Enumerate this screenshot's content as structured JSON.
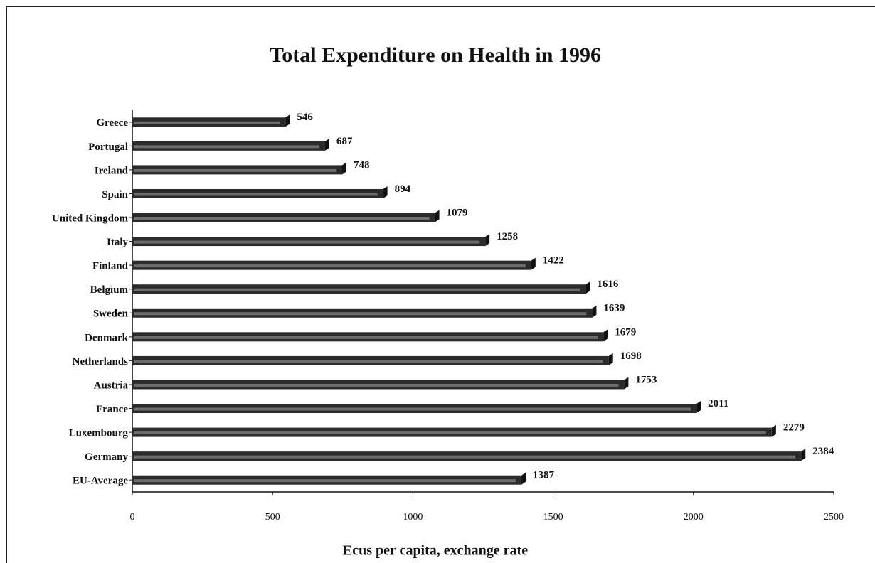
{
  "chart_data": {
    "type": "bar",
    "orientation": "horizontal",
    "title": "Total Expenditure on Health in 1996",
    "x_label": "Ecus per capita, exchange rate",
    "categories": [
      "Greece",
      "Portugal",
      "Ireland",
      "Spain",
      "United Kingdom",
      "Italy",
      "Finland",
      "Belgium",
      "Sweden",
      "Denmark",
      "Netherlands",
      "Austria",
      "France",
      "Luxembourg",
      "Germany",
      "EU-Average"
    ],
    "values": [
      546,
      687,
      748,
      894,
      1079,
      1258,
      1422,
      1616,
      1639,
      1679,
      1698,
      1753,
      2011,
      2279,
      2384,
      1387
    ],
    "color": "#2b2b2b",
    "xlim": [
      0,
      2500
    ],
    "xticks": [
      0,
      500,
      1000,
      1500,
      2000,
      2500
    ],
    "grid": false
  }
}
